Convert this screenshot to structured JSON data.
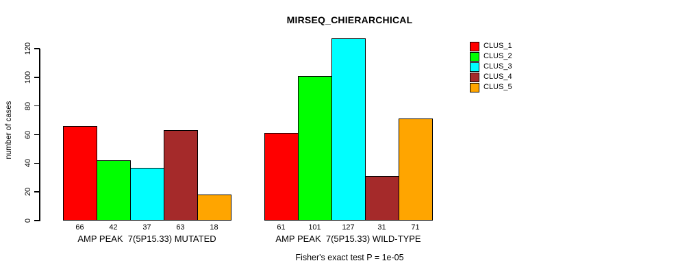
{
  "chart_data": {
    "type": "bar",
    "title": "MIRSEQ_CHIERARCHICAL",
    "ylabel": "number of cases",
    "xlabel": "",
    "ylim": [
      0,
      127
    ],
    "yticks": [
      0,
      20,
      40,
      60,
      80,
      100,
      120
    ],
    "grid": false,
    "legend_position": "right",
    "categories": [
      "AMP PEAK  7(5P15.33) MUTATED",
      "AMP PEAK  7(5P15.33) WILD-TYPE"
    ],
    "series": [
      {
        "name": "CLUS_1",
        "color": "#FF0000",
        "values": [
          66,
          61
        ]
      },
      {
        "name": "CLUS_2",
        "color": "#00FF00",
        "values": [
          42,
          101
        ]
      },
      {
        "name": "CLUS_3",
        "color": "#00FFFF",
        "values": [
          37,
          127
        ]
      },
      {
        "name": "CLUS_4",
        "color": "#A52A2A",
        "values": [
          63,
          31
        ]
      },
      {
        "name": "CLUS_5",
        "color": "#FFA500",
        "values": [
          18,
          71
        ]
      }
    ],
    "bar_value_labels_shown": true,
    "annotation": "Fisher's exact test P = 1e-05"
  }
}
